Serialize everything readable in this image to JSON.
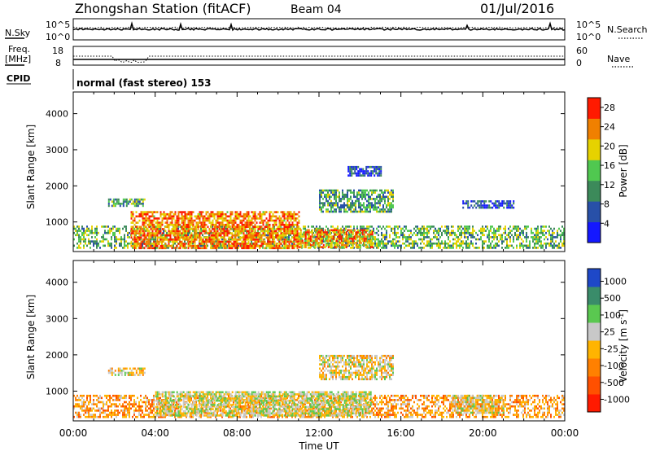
{
  "header": {
    "station": "Zhongshan Station (fitACF)",
    "beam": "Beam 04",
    "date": "01/Jul/2016"
  },
  "noise_panel": {
    "left_label": "N.Sky",
    "right_label": "N.Search",
    "left_ticks": [
      "10^5",
      "10^0"
    ],
    "right_ticks": [
      "10^5",
      "10^0"
    ]
  },
  "freq_panel": {
    "left_label_line1": "Freq.",
    "left_label_line2": "[MHz]",
    "left_ticks": [
      "18",
      "8"
    ],
    "right_label": "Nave",
    "right_ticks": [
      "60",
      "0"
    ],
    "cpid_label": "CPID",
    "cpid_text": "normal (fast stereo) 153",
    "freq_mhz_approx": 10.4,
    "nave_approx": 18
  },
  "chart_data": [
    {
      "type": "heatmap",
      "title": "",
      "xlabel": "Time UT",
      "ylabel": "Slant Range [km]",
      "xlim_hours": [
        0,
        24
      ],
      "ylim_km": [
        180,
        4600
      ],
      "x_ticks": [
        "00:00",
        "04:00",
        "08:00",
        "12:00",
        "16:00",
        "20:00",
        "00:00"
      ],
      "y_ticks": [
        "1000",
        "2000",
        "3000",
        "4000"
      ],
      "colorbar": {
        "label": "Power [dB]",
        "ticks": [
          "4",
          "8",
          "12",
          "16",
          "20",
          "24",
          "28"
        ],
        "range": [
          0,
          30
        ],
        "colors": [
          "#1418ff",
          "#2850a8",
          "#3c8a5a",
          "#50c850",
          "#e6d200",
          "#f08000",
          "#ff1a00"
        ]
      },
      "regions": [
        {
          "name": "E-region band",
          "t": [
            0.0,
            24.0
          ],
          "r": [
            300,
            900
          ],
          "value": 14
        },
        {
          "name": "strong echoes",
          "t": [
            2.8,
            11.0
          ],
          "r": [
            300,
            1300
          ],
          "value": 24
        },
        {
          "name": "strong echoes late",
          "t": [
            11.0,
            14.6
          ],
          "r": [
            300,
            800
          ],
          "value": 22
        },
        {
          "name": "mid echoes",
          "t": [
            12.0,
            15.6
          ],
          "r": [
            1300,
            1900
          ],
          "value": 12
        },
        {
          "name": "band 1600 km",
          "t": [
            1.7,
            3.5
          ],
          "r": [
            1450,
            1650
          ],
          "value": 12
        },
        {
          "name": "high patch",
          "t": [
            13.4,
            15.0
          ],
          "r": [
            2300,
            2550
          ],
          "value": 6
        },
        {
          "name": "late patch",
          "t": [
            19.0,
            21.5
          ],
          "r": [
            1400,
            1600
          ],
          "value": 6
        }
      ]
    },
    {
      "type": "heatmap",
      "title": "",
      "xlabel": "Time UT",
      "ylabel": "Slant Range [km]",
      "xlim_hours": [
        0,
        24
      ],
      "ylim_km": [
        180,
        4600
      ],
      "x_ticks": [
        "00:00",
        "04:00",
        "08:00",
        "12:00",
        "16:00",
        "20:00",
        "00:00"
      ],
      "y_ticks": [
        "1000",
        "2000",
        "3000",
        "4000"
      ],
      "colorbar": {
        "label": "Velocity [m s-1]",
        "ticks": [
          "1000",
          "500",
          "100",
          "25",
          "-25",
          "-100",
          "-500",
          "-1000"
        ],
        "range": [
          -1200,
          1200
        ],
        "colors": [
          "#1e48c8",
          "#3a8c6a",
          "#5ac850",
          "#c8c8c8",
          "#ffb400",
          "#ff8000",
          "#ff5000",
          "#ff1a00"
        ]
      },
      "regions": [
        {
          "name": "E-region band",
          "t": [
            0.0,
            24.0
          ],
          "r": [
            300,
            900
          ],
          "value": -300
        },
        {
          "name": "central mixed",
          "t": [
            4.0,
            14.5
          ],
          "r": [
            300,
            1000
          ],
          "value": 150
        },
        {
          "name": "ground scatter",
          "t": [
            12.0,
            15.6
          ],
          "r": [
            1300,
            2000
          ],
          "value": 0
        },
        {
          "name": "late low velocity",
          "t": [
            18.5,
            21.0
          ],
          "r": [
            400,
            900
          ],
          "value": 0
        },
        {
          "name": "band 1600 km",
          "t": [
            1.7,
            3.5
          ],
          "r": [
            1450,
            1650
          ],
          "value": 0
        }
      ]
    }
  ]
}
